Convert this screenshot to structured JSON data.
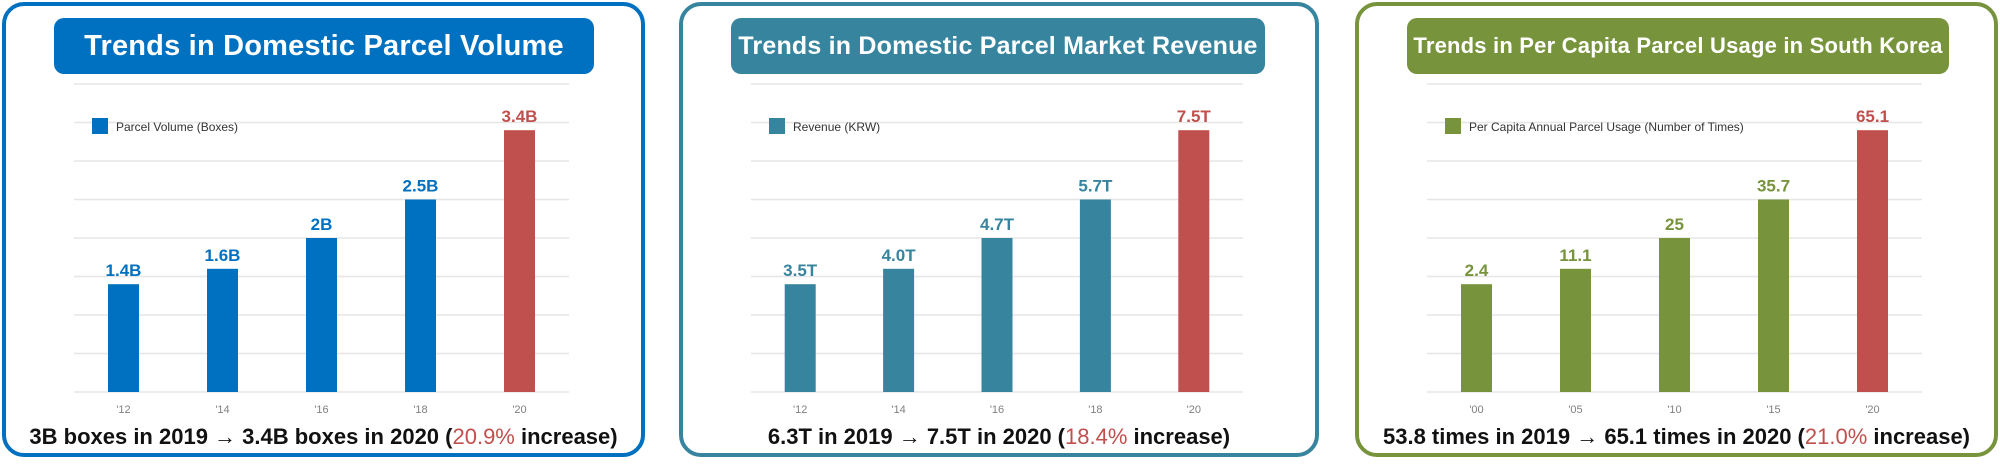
{
  "colors": {
    "highlight": "#C0504D",
    "grid": "#E6E6E6",
    "tick": "#7F7F7F",
    "text": "#111111"
  },
  "chart_data": [
    {
      "type": "bar",
      "title": "Trends in Domestic Parcel Volume",
      "legend": "Parcel Volume (Boxes)",
      "legend_position": "top-left",
      "categories": [
        "'12",
        "'14",
        "'16",
        "'18",
        "'20"
      ],
      "values": [
        1.4,
        1.6,
        2.0,
        2.5,
        3.4
      ],
      "value_labels": [
        "1.4B",
        "1.6B",
        "2B",
        "2.5B",
        "3.4B"
      ],
      "unit": "billion boxes",
      "display_levels": [
        0.35,
        0.4,
        0.5,
        0.625,
        0.85
      ],
      "ylim": [
        0,
        4
      ],
      "gridlines": 8,
      "grid": true,
      "series_color": "#0070C0",
      "highlight_index": 4,
      "highlight_color": "#C0504D",
      "border_color": "#0070C0",
      "footer": {
        "before": "3B boxes in 2019 → 3.4B boxes in 2020 (",
        "highlight": "20.9%",
        "after": " increase)"
      }
    },
    {
      "type": "bar",
      "title": "Trends in Domestic Parcel Market Revenue",
      "legend": "Revenue (KRW)",
      "legend_position": "top-left",
      "categories": [
        "'12",
        "'14",
        "'16",
        "'18",
        "'20"
      ],
      "values": [
        3.5,
        4.0,
        4.7,
        5.7,
        7.5
      ],
      "value_labels": [
        "3.5T",
        "4.0T",
        "4.7T",
        "5.7T",
        "7.5T"
      ],
      "unit": "trillion KRW",
      "display_levels": [
        0.35,
        0.4,
        0.5,
        0.625,
        0.85
      ],
      "gridlines": 8,
      "grid": true,
      "series_color": "#36849E",
      "highlight_index": 4,
      "highlight_color": "#C0504D",
      "border_color": "#36849E",
      "footer": {
        "before": "6.3T in 2019 → 7.5T in 2020 (",
        "highlight": "18.4%",
        "after": " increase)"
      }
    },
    {
      "type": "bar",
      "title": "Trends in Per Capita Parcel Usage in South Korea",
      "legend": "Per Capita Annual Parcel Usage (Number of Times)",
      "legend_position": "top-left",
      "categories": [
        "'00",
        "'05",
        "'10",
        "'15",
        "'20"
      ],
      "values": [
        2.4,
        11.1,
        25,
        35.7,
        65.1
      ],
      "value_labels": [
        "2.4",
        "11.1",
        "25",
        "35.7",
        "65.1"
      ],
      "unit": "times per person",
      "display_levels": [
        0.35,
        0.4,
        0.5,
        0.625,
        0.85
      ],
      "gridlines": 8,
      "grid": true,
      "series_color": "#77933C",
      "highlight_index": 4,
      "highlight_color": "#C0504D",
      "border_color": "#77933C",
      "footer": {
        "before": "53.8 times in 2019 → 65.1 times in 2020 (",
        "highlight": "21.0%",
        "after": " increase)"
      }
    }
  ]
}
